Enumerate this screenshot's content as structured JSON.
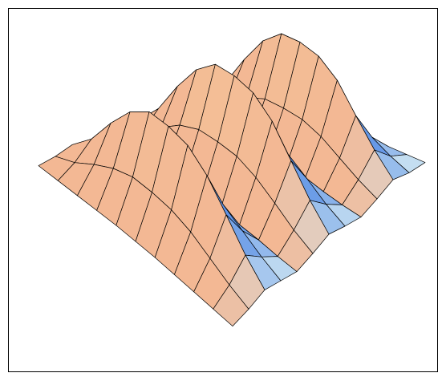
{
  "chart_data": {
    "type": "surface",
    "mesh": true,
    "colors": [
      "#5f93e6",
      "#cfe6f2",
      "#f3b894",
      "#f7e0a0"
    ],
    "z": [
      [
        0.01,
        0.04,
        0.09,
        0.05,
        0.01,
        0.05,
        0.1,
        0.05,
        0.01,
        0.05,
        0.1,
        0.04,
        0.01
      ],
      [
        0.02,
        0.12,
        0.27,
        0.14,
        0.03,
        0.15,
        0.3,
        0.15,
        0.03,
        0.14,
        0.29,
        0.12,
        0.02
      ],
      [
        0.03,
        0.24,
        0.54,
        0.27,
        0.06,
        0.3,
        0.6,
        0.3,
        0.06,
        0.27,
        0.57,
        0.24,
        0.03
      ],
      [
        0.04,
        0.34,
        0.77,
        0.38,
        0.09,
        0.43,
        0.85,
        0.43,
        0.09,
        0.38,
        0.81,
        0.34,
        0.04
      ],
      [
        0.05,
        0.4,
        0.9,
        0.45,
        0.1,
        0.5,
        1.0,
        0.5,
        0.1,
        0.45,
        0.95,
        0.4,
        0.05
      ],
      [
        0.05,
        0.4,
        0.9,
        0.45,
        0.1,
        0.5,
        1.0,
        0.5,
        0.1,
        0.45,
        0.95,
        0.4,
        0.05
      ],
      [
        0.05,
        0.38,
        0.86,
        0.43,
        0.1,
        0.48,
        0.95,
        0.48,
        0.1,
        0.43,
        0.9,
        0.38,
        0.05
      ],
      [
        0.04,
        0.32,
        0.72,
        0.36,
        0.08,
        0.4,
        0.8,
        0.4,
        0.08,
        0.36,
        0.76,
        0.32,
        0.04
      ],
      [
        0.03,
        0.22,
        0.5,
        0.25,
        0.06,
        0.28,
        0.55,
        0.28,
        0.06,
        0.25,
        0.52,
        0.22,
        0.03
      ],
      [
        0.02,
        0.12,
        0.27,
        0.14,
        0.03,
        0.15,
        0.3,
        0.15,
        0.03,
        0.14,
        0.29,
        0.12,
        0.02
      ],
      [
        0.01,
        0.04,
        0.09,
        0.05,
        0.01,
        0.05,
        0.1,
        0.05,
        0.01,
        0.05,
        0.1,
        0.04,
        0.01
      ]
    ]
  }
}
